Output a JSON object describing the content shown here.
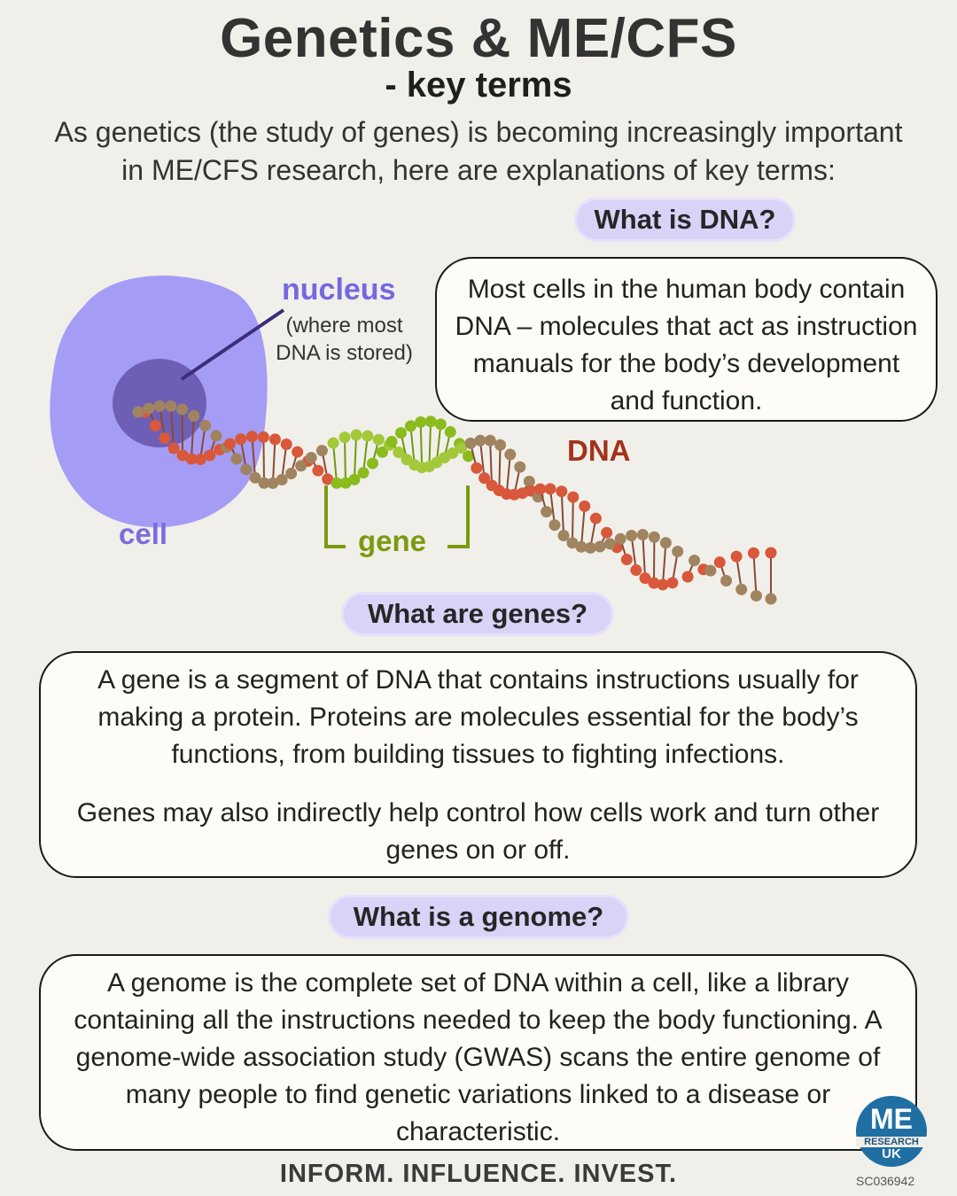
{
  "header": {
    "title": "Genetics & ME/CFS",
    "subtitle": "- key terms",
    "intro": "As genetics (the study of genes) is becoming increasingly important in ME/CFS research, here are explanations of key terms:"
  },
  "dna_section": {
    "heading": "What is DNA?",
    "text": "Most cells in the human body contain DNA – molecules that act as instruction manuals for the body’s development and function."
  },
  "diagram": {
    "nucleus_label": "nucleus",
    "nucleus_note": "(where  most DNA is stored)",
    "cell_label": "cell",
    "dna_label": "DNA",
    "gene_label": "gene"
  },
  "genes_section": {
    "heading": "What are genes?",
    "paragraph1": "A gene is a segment of DNA that contains instructions usually for making a protein. Proteins are molecules essential for the body’s functions, from building tissues to fighting infections.",
    "paragraph2": "Genes may also indirectly help control how cells work and turn other genes on or off."
  },
  "genome_section": {
    "heading": "What is a genome?",
    "text": "A genome is the complete set of DNA within a cell, like a library containing all the instructions needed to keep the body functioning. A genome-wide association study (GWAS) scans the entire genome of many people to find genetic variations linked to a disease or characteristic."
  },
  "footer": {
    "tagline": "INFORM. INFLUENCE. INVEST.",
    "charity_number": "SC036942"
  },
  "logo": {
    "line1": "ME",
    "line2": "RESEARCH",
    "line3": "UK"
  },
  "colors": {
    "background": "#f1efea",
    "cell": "#a59cf5",
    "nucleus": "#6d5fb6",
    "dna_red": "#d9573a",
    "dna_brown": "#a08460",
    "gene_green": "#8bbb1c",
    "pill": "#d8d3f7"
  }
}
